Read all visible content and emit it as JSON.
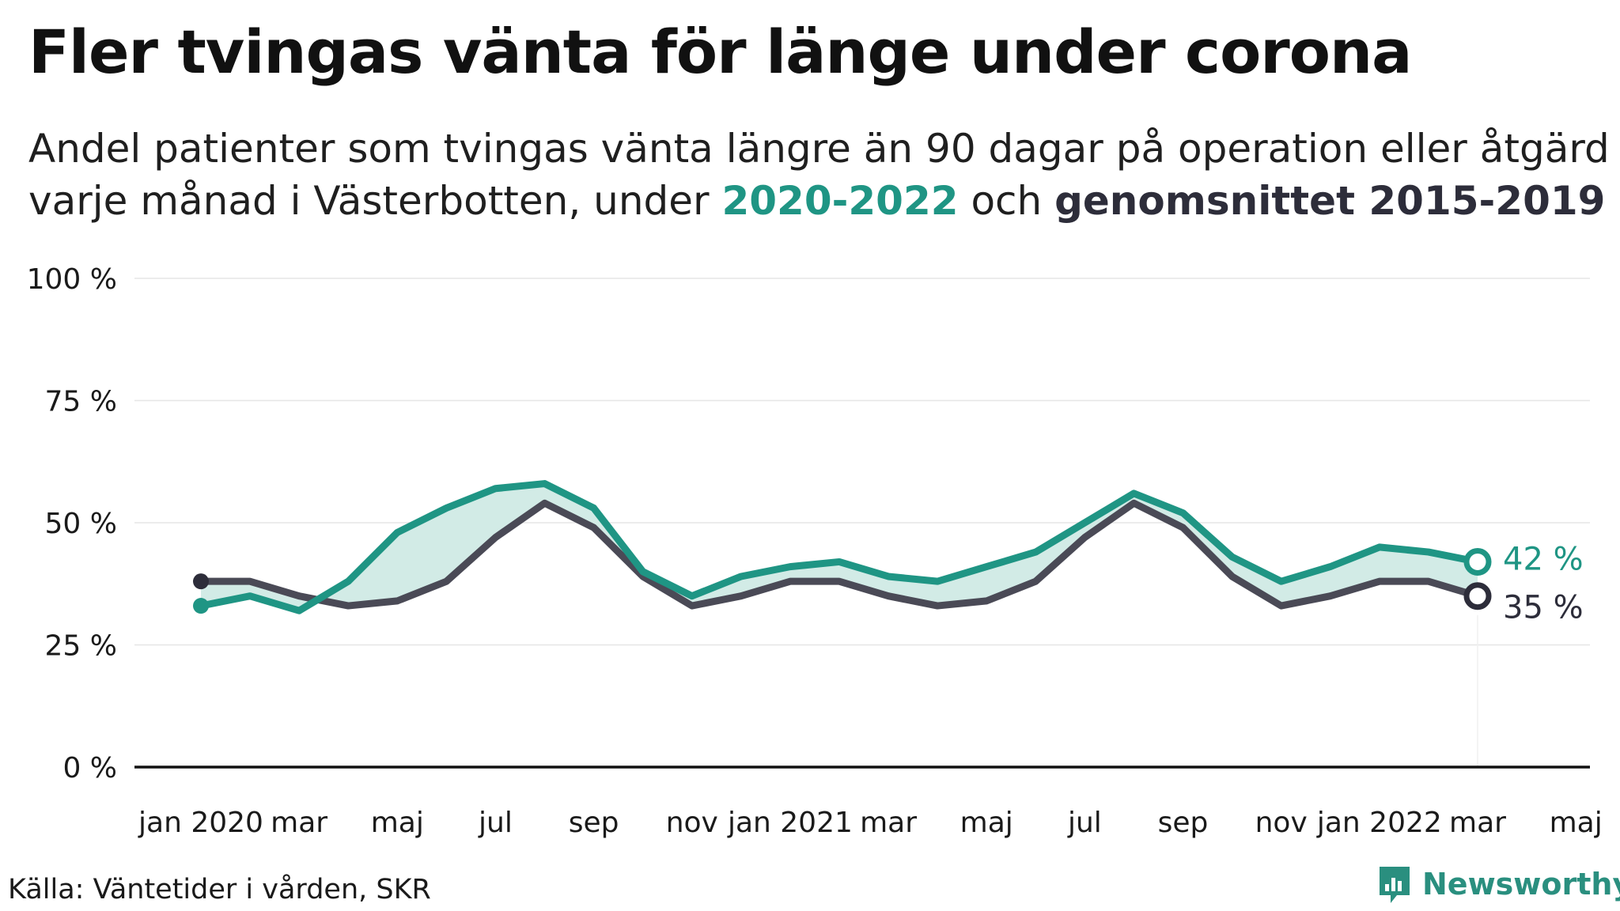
{
  "title": "Fler tvingas vänta för länge under corona",
  "subtitle": {
    "line1": "Andel patienter som tvingas vänta längre än 90 dagar på operation eller åtgärd",
    "line2_prefix": "varje månad i Västerbotten, under ",
    "highlight_current": "2020-2022",
    "line2_middle": " och ",
    "highlight_average": "genomsnittet 2015-2019"
  },
  "source": "Källa: Väntetider i vården, SKR",
  "brand": "Newsworthy",
  "colors": {
    "current": "#1f9584",
    "average": "#4a4a56",
    "band_fill": "#d2ebe6",
    "grid": "#e6e6e6",
    "axis": "#111111"
  },
  "chart_data": {
    "type": "line",
    "x_tick_labels": [
      "jan 2020",
      "mar",
      "maj",
      "jul",
      "sep",
      "nov",
      "jan 2021",
      "mar",
      "maj",
      "jul",
      "sep",
      "nov",
      "jan 2022",
      "mar",
      "maj"
    ],
    "y_ticks": [
      "0 %",
      "25 %",
      "50 %",
      "75 %",
      "100 %"
    ],
    "ylim": [
      0,
      100
    ],
    "grid": true,
    "series": [
      {
        "name": "2020-2022",
        "values": [
          33,
          35,
          32,
          38,
          48,
          53,
          57,
          58,
          53,
          40,
          35,
          39,
          41,
          42,
          39,
          38,
          41,
          44,
          50,
          56,
          52,
          43,
          38,
          41,
          45,
          44,
          42
        ]
      },
      {
        "name": "genomsnittet 2015-2019",
        "values": [
          38,
          38,
          35,
          33,
          34,
          38,
          47,
          54,
          49,
          39,
          33,
          35,
          38,
          38,
          35,
          33,
          34,
          38,
          47,
          54,
          49,
          39,
          33,
          35,
          38,
          38,
          35
        ]
      }
    ],
    "end_labels": [
      "42 %",
      "35 %"
    ]
  }
}
